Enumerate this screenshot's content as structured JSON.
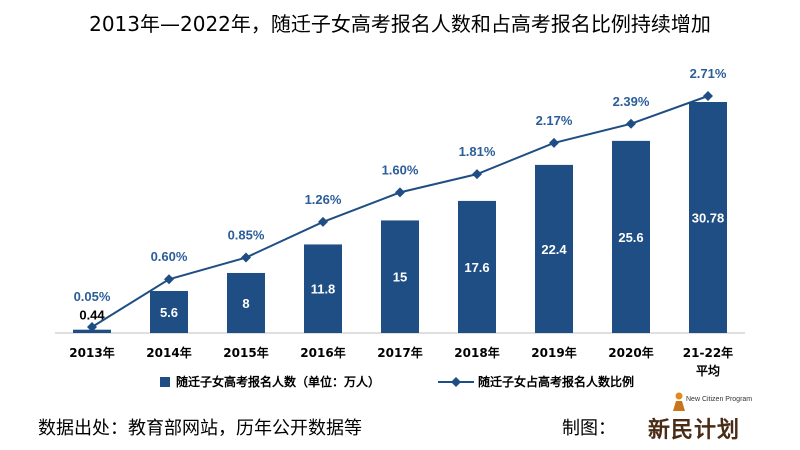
{
  "title": "2013年—2022年，随迁子女高考报名人数和占高考报名比例持续增加",
  "footer": {
    "source": "数据出处：教育部网站，历年公开数据等",
    "maker_label": "制图：",
    "logo_text": "新民计划",
    "logo_small_text": "New Citizen Program"
  },
  "colors": {
    "bar": "#1f4e85",
    "line": "#1f4e85",
    "percent_label": "#2b5e99",
    "axis": "#bfbfbf"
  },
  "chart_data": {
    "type": "bar",
    "categories": [
      "2013年",
      "2014年",
      "2015年",
      "2016年",
      "2017年",
      "2018年",
      "2019年",
      "2020年",
      "21-22年\n平均"
    ],
    "series": [
      {
        "name": "随迁子女高考报名人数（单位：万人）",
        "type": "bar",
        "values": [
          0.44,
          5.6,
          8,
          11.8,
          15,
          17.6,
          22.4,
          25.6,
          30.78
        ],
        "labels": [
          "0.44",
          "5.6",
          "8",
          "11.8",
          "15",
          "17.6",
          "22.4",
          "25.6",
          "30.78"
        ]
      },
      {
        "name": "随迁子女占高考报名人数比例",
        "type": "line",
        "values": [
          0.05,
          0.6,
          0.85,
          1.26,
          1.6,
          1.81,
          2.17,
          2.39,
          2.71
        ],
        "labels": [
          "0.05%",
          "0.60%",
          "0.85%",
          "1.26%",
          "1.60%",
          "1.81%",
          "2.17%",
          "2.39%",
          "2.71%"
        ]
      }
    ],
    "legend_position": "bottom",
    "grid": false
  }
}
